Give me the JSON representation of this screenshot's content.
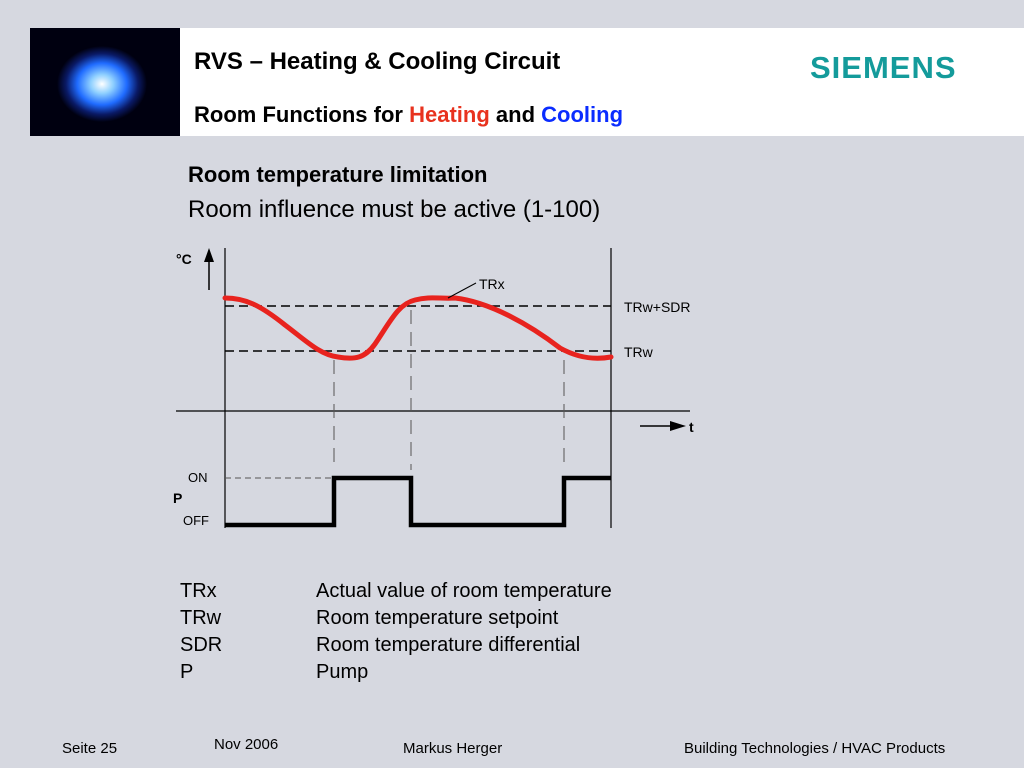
{
  "header": {
    "title": "RVS – Heating & Cooling Circuit",
    "subtitle_prefix": "Room Functions for",
    "subtitle_heating": "Heating",
    "subtitle_and": "and",
    "subtitle_cooling": "Cooling",
    "brand": "SIEMENS",
    "colors": {
      "heating": "#e8321e",
      "cooling": "#0a2cff",
      "brand": "#149b9b"
    }
  },
  "content": {
    "heading": "Room temperature limitation",
    "subheading": "Room influence must be active (1-100)"
  },
  "diagram": {
    "y_axis_label": "°C",
    "x_axis_label": "t",
    "curve_label": "TRx",
    "upper_line_label": "TRw+SDR",
    "lower_line_label": "TRw",
    "pump_label": "P",
    "on_label": "ON",
    "off_label": "OFF",
    "curve_color": "#e8231e"
  },
  "legend": [
    {
      "abbr": "TRx",
      "desc": "Actual value of room temperature"
    },
    {
      "abbr": "TRw",
      "desc": "Room temperature setpoint"
    },
    {
      "abbr": "SDR",
      "desc": "Room temperature differential"
    },
    {
      "abbr": "P",
      "desc": "Pump"
    }
  ],
  "footer": {
    "page": "Seite 25",
    "date": "Nov 2006",
    "author": "Markus Herger",
    "division": "Building Technologies / HVAC Products"
  }
}
